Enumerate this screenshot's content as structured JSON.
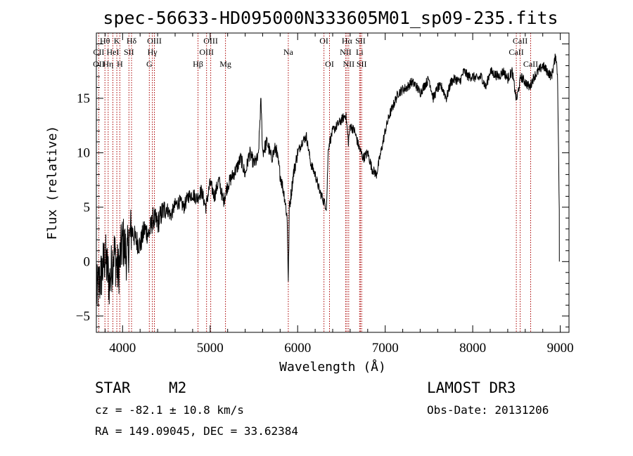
{
  "chart_data": {
    "type": "line",
    "title": "spec-56633-HD095000N333605M01_sp09-235.fits",
    "xlabel": "Wavelength (Å)",
    "ylabel": "Flux (relative)",
    "xlim": [
      3700,
      9100
    ],
    "ylim": [
      -6.5,
      21
    ],
    "xticks": [
      4000,
      5000,
      6000,
      7000,
      8000,
      9000
    ],
    "yticks": [
      -5,
      0,
      5,
      10,
      15
    ],
    "series": [
      {
        "name": "flux",
        "x": [
          3700,
          3750,
          3800,
          3850,
          3900,
          3950,
          4000,
          4050,
          4100,
          4150,
          4200,
          4250,
          4300,
          4350,
          4400,
          4450,
          4500,
          4550,
          4600,
          4650,
          4700,
          4750,
          4800,
          4850,
          4900,
          4950,
          5000,
          5050,
          5100,
          5150,
          5200,
          5250,
          5300,
          5350,
          5400,
          5450,
          5500,
          5550,
          5580,
          5600,
          5650,
          5700,
          5750,
          5800,
          5850,
          5880,
          5893,
          5905,
          5930,
          5950,
          6000,
          6050,
          6100,
          6150,
          6200,
          6250,
          6300,
          6330,
          6350,
          6400,
          6450,
          6500,
          6550,
          6580,
          6600,
          6650,
          6700,
          6750,
          6800,
          6850,
          6900,
          6950,
          7000,
          7050,
          7100,
          7150,
          7200,
          7250,
          7300,
          7350,
          7400,
          7450,
          7500,
          7550,
          7600,
          7650,
          7700,
          7750,
          7800,
          7850,
          7900,
          7950,
          8000,
          8050,
          8100,
          8150,
          8200,
          8250,
          8300,
          8350,
          8400,
          8450,
          8500,
          8550,
          8600,
          8650,
          8700,
          8750,
          8800,
          8850,
          8900,
          8950,
          8970,
          8990
        ],
        "y": [
          -3.0,
          -1.5,
          0.5,
          -2.0,
          1.0,
          -1.0,
          2.0,
          0.5,
          3.0,
          2.0,
          1.5,
          3.0,
          2.5,
          4.0,
          3.5,
          4.5,
          5.0,
          4.2,
          5.2,
          5.5,
          5.0,
          6.0,
          6.2,
          5.8,
          6.5,
          5.0,
          7.2,
          6.0,
          7.5,
          5.5,
          7.0,
          7.8,
          8.5,
          9.5,
          8.0,
          10.0,
          9.0,
          9.5,
          15.0,
          10.0,
          11.0,
          9.5,
          10.5,
          8.0,
          6.0,
          4.0,
          -1.8,
          5.0,
          6.5,
          8.0,
          10.0,
          11.0,
          11.5,
          9.0,
          8.0,
          6.5,
          5.5,
          5.0,
          10.5,
          12.0,
          12.5,
          13.0,
          13.5,
          11.0,
          12.5,
          12.0,
          10.5,
          9.5,
          10.0,
          8.5,
          8.0,
          10.0,
          12.0,
          13.5,
          14.5,
          15.5,
          15.8,
          16.0,
          16.5,
          16.2,
          15.5,
          16.2,
          16.8,
          15.0,
          16.0,
          16.0,
          15.0,
          16.5,
          16.8,
          16.5,
          17.5,
          17.0,
          17.0,
          16.8,
          17.0,
          16.0,
          17.5,
          17.2,
          17.0,
          17.5,
          16.8,
          17.5,
          14.8,
          17.0,
          16.5,
          16.0,
          17.0,
          17.5,
          18.0,
          17.5,
          17.0,
          19.0,
          17.0,
          4.0
        ]
      }
    ],
    "spectral_lines": [
      {
        "label": "Hθ",
        "wave": 3798,
        "row": 1
      },
      {
        "label": "K",
        "wave": 3934,
        "row": 1
      },
      {
        "label": "Hδ",
        "wave": 4102,
        "row": 1
      },
      {
        "label": "OIII",
        "wave": 4363,
        "row": 1
      },
      {
        "label": "OIII",
        "wave": 5007,
        "row": 1
      },
      {
        "label": "OI",
        "wave": 6300,
        "row": 1
      },
      {
        "label": "Hα",
        "wave": 6563,
        "row": 1
      },
      {
        "label": "SII",
        "wave": 6717,
        "row": 1
      },
      {
        "label": "CaII",
        "wave": 8542,
        "row": 1
      },
      {
        "label": "CII",
        "wave": 3727,
        "row": 2
      },
      {
        "label": "HeI",
        "wave": 3889,
        "row": 2
      },
      {
        "label": "SII",
        "wave": 4072,
        "row": 2
      },
      {
        "label": "Hγ",
        "wave": 4340,
        "row": 2
      },
      {
        "label": "OIII",
        "wave": 4959,
        "row": 2
      },
      {
        "label": "Na",
        "wave": 5893,
        "row": 2
      },
      {
        "label": "NII",
        "wave": 6548,
        "row": 2
      },
      {
        "label": "Li",
        "wave": 6708,
        "row": 2
      },
      {
        "label": "CaII",
        "wave": 8498,
        "row": 2
      },
      {
        "label": "OII",
        "wave": 3727,
        "row": 3
      },
      {
        "label": "Hη",
        "wave": 3835,
        "row": 3
      },
      {
        "label": "H",
        "wave": 3968,
        "row": 3
      },
      {
        "label": "G",
        "wave": 4305,
        "row": 3
      },
      {
        "label": "Hβ",
        "wave": 4861,
        "row": 3
      },
      {
        "label": "Mg",
        "wave": 5175,
        "row": 3
      },
      {
        "label": "OI",
        "wave": 6364,
        "row": 3
      },
      {
        "label": "NII",
        "wave": 6583,
        "row": 3
      },
      {
        "label": "SII",
        "wave": 6731,
        "row": 3
      },
      {
        "label": "CaII",
        "wave": 8662,
        "row": 3
      }
    ],
    "marker_lines": [
      3727,
      3798,
      3835,
      3889,
      3934,
      3968,
      4072,
      4102,
      4305,
      4340,
      4363,
      4861,
      4959,
      5007,
      5175,
      5893,
      6300,
      6364,
      6548,
      6563,
      6583,
      6708,
      6717,
      6731,
      8498,
      8542,
      8662
    ],
    "colors": {
      "spectrum": "#000000",
      "marker_lines": "#aa0000",
      "axes": "#000000"
    }
  },
  "info": {
    "class_label": "STAR",
    "subclass": "M2",
    "cz": "cz = -82.1 ± 10.8 km/s",
    "radec": "RA = 149.09045, DEC =  33.62384",
    "survey": "LAMOST DR3",
    "obs_date": "Obs-Date: 20131206"
  }
}
